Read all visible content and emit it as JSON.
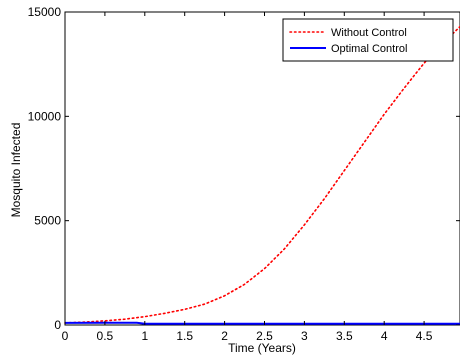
{
  "chart_data": {
    "type": "line",
    "title": "",
    "xlabel": "Time (Years)",
    "ylabel": "Mosquito Infected",
    "xlim": [
      0,
      4.95
    ],
    "ylim": [
      0,
      15000
    ],
    "xticks": [
      0,
      0.5,
      1,
      1.5,
      2,
      2.5,
      3,
      3.5,
      4,
      4.5
    ],
    "xtick_labels": [
      "0",
      "0.5",
      "1",
      "1.5",
      "2",
      "2.5",
      "3",
      "3.5",
      "4",
      "4.5"
    ],
    "yticks": [
      0,
      5000,
      10000,
      15000
    ],
    "ytick_labels": [
      "0",
      "5000",
      "10000",
      "15000"
    ],
    "grid": false,
    "legend_position": "top-right",
    "series": [
      {
        "name": "Without Control",
        "color": "#ff0000",
        "style": "dotted",
        "x": [
          0,
          0.25,
          0.5,
          0.75,
          1,
          1.25,
          1.5,
          1.75,
          2,
          2.25,
          2.5,
          2.75,
          3,
          3.25,
          3.5,
          3.75,
          4,
          4.25,
          4.5,
          4.75,
          4.95
        ],
        "values": [
          100,
          140,
          200,
          280,
          400,
          560,
          750,
          1000,
          1400,
          1950,
          2700,
          3650,
          4800,
          6050,
          7400,
          8750,
          10100,
          11350,
          12550,
          13550,
          14300
        ]
      },
      {
        "name": "Optimal Control",
        "color": "#0000ff",
        "style": "solid",
        "x": [
          0,
          0.5,
          0.9,
          1,
          1.5,
          2,
          2.5,
          3,
          3.5,
          4,
          4.5,
          4.95
        ],
        "values": [
          100,
          105,
          110,
          60,
          60,
          60,
          60,
          60,
          60,
          60,
          60,
          60
        ]
      }
    ]
  }
}
